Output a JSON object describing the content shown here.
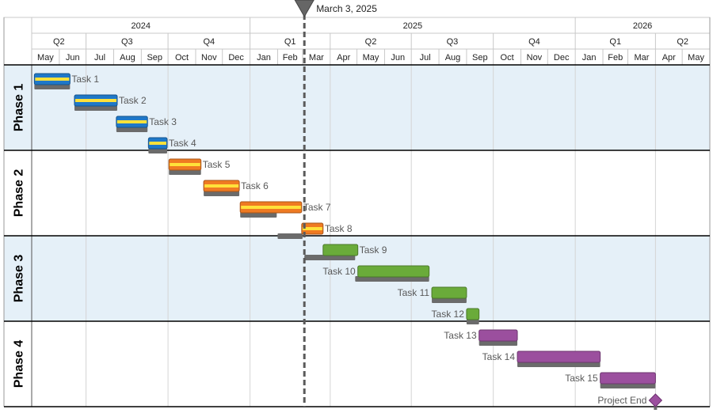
{
  "chart_data": {
    "type": "gantt",
    "today_marker": {
      "label": "March 3, 2025",
      "date": "2025-03-03"
    },
    "years": [
      {
        "label": "2024",
        "start": "2024-05-01",
        "end": "2025-01-01"
      },
      {
        "label": "2025",
        "start": "2025-01-01",
        "end": "2026-01-01"
      },
      {
        "label": "2026",
        "start": "2026-01-01",
        "end": "2026-06-01"
      }
    ],
    "quarters": [
      {
        "label": "Q2",
        "start": "2024-05-01",
        "end": "2024-07-01"
      },
      {
        "label": "Q3",
        "start": "2024-07-01",
        "end": "2024-10-01"
      },
      {
        "label": "Q4",
        "start": "2024-10-01",
        "end": "2025-01-01"
      },
      {
        "label": "Q1",
        "start": "2025-01-01",
        "end": "2025-04-01"
      },
      {
        "label": "Q2",
        "start": "2025-04-01",
        "end": "2025-07-01"
      },
      {
        "label": "Q3",
        "start": "2025-07-01",
        "end": "2025-10-01"
      },
      {
        "label": "Q4",
        "start": "2025-10-01",
        "end": "2026-01-01"
      },
      {
        "label": "Q1",
        "start": "2026-01-01",
        "end": "2026-04-01"
      },
      {
        "label": "Q2",
        "start": "2026-04-01",
        "end": "2026-06-01"
      }
    ],
    "months": [
      {
        "label": "May",
        "start": "2024-05-01"
      },
      {
        "label": "Jun",
        "start": "2024-06-01"
      },
      {
        "label": "Jul",
        "start": "2024-07-01"
      },
      {
        "label": "Aug",
        "start": "2024-08-01"
      },
      {
        "label": "Sep",
        "start": "2024-09-01"
      },
      {
        "label": "Oct",
        "start": "2024-10-01"
      },
      {
        "label": "Nov",
        "start": "2024-11-01"
      },
      {
        "label": "Dec",
        "start": "2024-12-01"
      },
      {
        "label": "Jan",
        "start": "2025-01-01"
      },
      {
        "label": "Feb",
        "start": "2025-02-01"
      },
      {
        "label": "Mar",
        "start": "2025-03-01"
      },
      {
        "label": "Apr",
        "start": "2025-04-01"
      },
      {
        "label": "May",
        "start": "2025-05-01"
      },
      {
        "label": "Jun",
        "start": "2025-06-01"
      },
      {
        "label": "Jul",
        "start": "2025-07-01"
      },
      {
        "label": "Aug",
        "start": "2025-08-01"
      },
      {
        "label": "Sep",
        "start": "2025-09-01"
      },
      {
        "label": "Oct",
        "start": "2025-10-01"
      },
      {
        "label": "Nov",
        "start": "2025-11-01"
      },
      {
        "label": "Dec",
        "start": "2025-12-01"
      },
      {
        "label": "Jan",
        "start": "2026-01-01"
      },
      {
        "label": "Feb",
        "start": "2026-02-01"
      },
      {
        "label": "Mar",
        "start": "2026-03-01"
      },
      {
        "label": "Apr",
        "start": "2026-04-01"
      },
      {
        "label": "May",
        "start": "2026-05-01"
      }
    ],
    "timeline_end": "2026-06-01",
    "phases": [
      {
        "name": "Phase 1",
        "color": "#1f78c8",
        "stripe": "#ffe13a",
        "band": "#e5f0f8",
        "tasks": [
          {
            "name": "Task 1",
            "start": "2024-05-04",
            "end": "2024-06-13",
            "label_side": "right",
            "baseline_start": "2024-05-04",
            "baseline_end": "2024-06-13"
          },
          {
            "name": "Task 2",
            "start": "2024-06-18",
            "end": "2024-08-05",
            "label_side": "right",
            "baseline_start": "2024-06-18",
            "baseline_end": "2024-08-05"
          },
          {
            "name": "Task 3",
            "start": "2024-08-04",
            "end": "2024-09-08",
            "label_side": "right",
            "baseline_start": "2024-08-04",
            "baseline_end": "2024-09-08"
          },
          {
            "name": "Task 4",
            "start": "2024-09-09",
            "end": "2024-09-30",
            "label_side": "right",
            "baseline_start": "2024-09-09",
            "baseline_end": "2024-09-30"
          }
        ]
      },
      {
        "name": "Phase 2",
        "color": "#ef7a22",
        "stripe": "#ffe13a",
        "band": "#ffffff",
        "tasks": [
          {
            "name": "Task 5",
            "start": "2024-10-02",
            "end": "2024-11-07",
            "label_side": "right",
            "baseline_start": "2024-10-02",
            "baseline_end": "2024-11-07"
          },
          {
            "name": "Task 6",
            "start": "2024-11-10",
            "end": "2024-12-20",
            "label_side": "right",
            "baseline_start": "2024-11-10",
            "baseline_end": "2024-12-20"
          },
          {
            "name": "Task 7",
            "start": "2024-12-21",
            "end": "2025-02-28",
            "label_side": "right",
            "baseline_start": "2024-12-21",
            "baseline_end": "2025-01-31"
          },
          {
            "name": "Task 8",
            "start": "2025-02-28",
            "end": "2025-03-24",
            "label_side": "right",
            "baseline_start": "2025-02-01",
            "baseline_end": "2025-03-01"
          }
        ]
      },
      {
        "name": "Phase 3",
        "color": "#6aab3a",
        "stripe": null,
        "band": "#e5f0f8",
        "tasks": [
          {
            "name": "Task 9",
            "start": "2025-03-24",
            "end": "2025-05-02",
            "label_side": "right",
            "baseline_start": "2025-03-03",
            "baseline_end": "2025-04-29"
          },
          {
            "name": "Task 10",
            "start": "2025-05-02",
            "end": "2025-07-21",
            "label_side": "left",
            "baseline_start": "2025-04-29",
            "baseline_end": "2025-07-21"
          },
          {
            "name": "Task 11",
            "start": "2025-07-24",
            "end": "2025-09-01",
            "label_side": "left",
            "baseline_start": "2025-07-24",
            "baseline_end": "2025-09-01"
          },
          {
            "name": "Task 12",
            "start": "2025-09-01",
            "end": "2025-09-15",
            "label_side": "left",
            "baseline_start": "2025-09-01",
            "baseline_end": "2025-09-15"
          }
        ]
      },
      {
        "name": "Phase 4",
        "color": "#9b4f9e",
        "stripe": null,
        "band": "#ffffff",
        "tasks": [
          {
            "name": "Task 13",
            "start": "2025-09-15",
            "end": "2025-10-28",
            "label_side": "left",
            "baseline_start": "2025-09-15",
            "baseline_end": "2025-10-28"
          },
          {
            "name": "Task 14",
            "start": "2025-10-28",
            "end": "2026-01-29",
            "label_side": "left",
            "baseline_start": "2025-10-28",
            "baseline_end": "2026-01-29"
          },
          {
            "name": "Task 15",
            "start": "2026-01-29",
            "end": "2026-04-01",
            "label_side": "left",
            "baseline_start": "2026-01-29",
            "baseline_end": "2026-04-01"
          },
          {
            "name": "Project End",
            "milestone": true,
            "date": "2026-04-01",
            "label_side": "left"
          }
        ]
      }
    ],
    "colors": {
      "grid": "#c8c8c8",
      "baseline": "#6b6b6b",
      "today_line": "#5a5a5a",
      "phase_border": "#000000"
    }
  }
}
